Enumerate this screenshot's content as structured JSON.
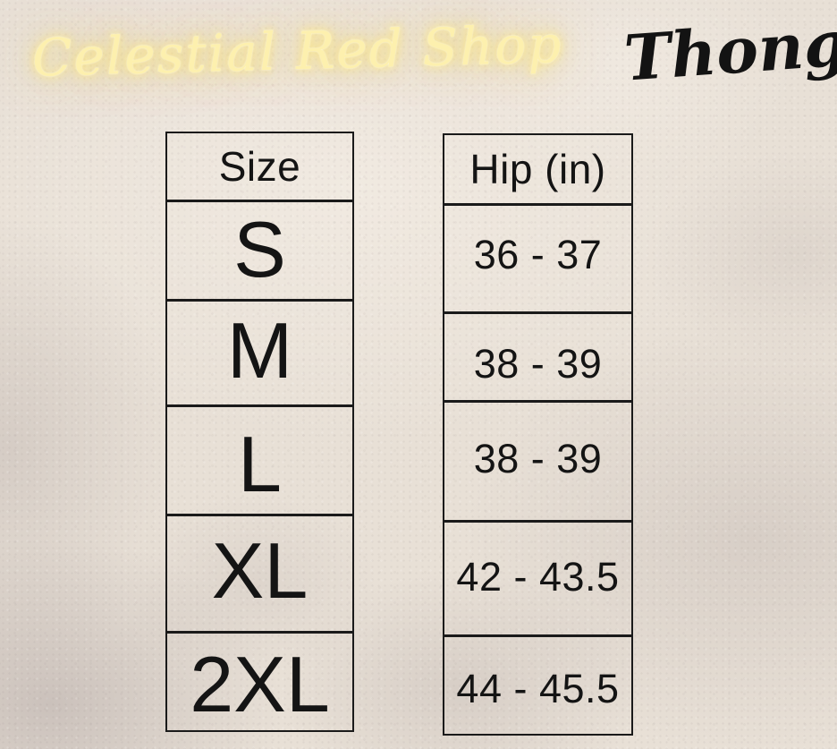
{
  "brand": {
    "shop_name": "Celestial Red Shop",
    "product_name": "Thong"
  },
  "size_table": {
    "headers": {
      "size": "Size",
      "hip": "Hip (in)"
    },
    "rows": [
      {
        "size": "S",
        "hip": "36 - 37"
      },
      {
        "size": "M",
        "hip": "38 - 39"
      },
      {
        "size": "L",
        "hip": "38 - 39"
      },
      {
        "size": "XL",
        "hip": "42 - 43.5"
      },
      {
        "size": "2XL",
        "hip": "44 - 45.5"
      }
    ]
  },
  "chart_data": {
    "type": "table",
    "title": "Celestial Red Shop — Thong size chart",
    "columns": [
      "Size",
      "Hip (in)"
    ],
    "rows": [
      [
        "S",
        "36 - 37"
      ],
      [
        "M",
        "38 - 39"
      ],
      [
        "L",
        "38 - 39"
      ],
      [
        "XL",
        "42 - 43.5"
      ],
      [
        "2XL",
        "44 - 45.5"
      ]
    ],
    "units": "inches"
  },
  "colors": {
    "background_beige": "#e8e0d6",
    "texture_gray": "#a89c9a",
    "table_line": "#1a1a1a",
    "table_text": "#141414",
    "neon_yellow": "#fdf0ae",
    "neon_glow": "#f8e27a",
    "script_black": "#131313"
  }
}
